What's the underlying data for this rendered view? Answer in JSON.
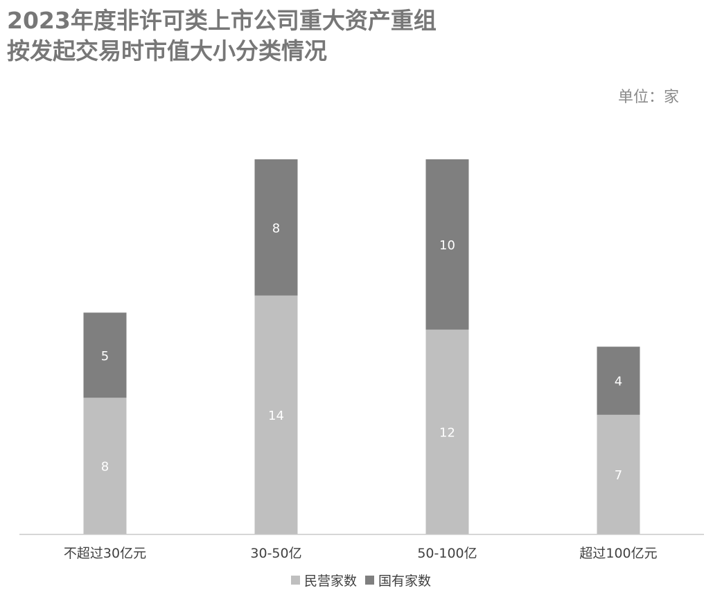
{
  "colors": {
    "private": "#bfbfbf",
    "state": "#7f7f7f",
    "axis": "#c8c8c8",
    "title": "#777777"
  },
  "chart_data": {
    "type": "bar",
    "stacked": true,
    "title_lines": [
      "2023年度非许可类上市公司重大资产重组",
      "按发起交易时市值大小分类情况"
    ],
    "unit_label": "单位：家",
    "categories": [
      "不超过30亿元",
      "30-50亿",
      "50-100亿",
      "超过100亿元"
    ],
    "series": [
      {
        "name": "民营家数",
        "values": [
          8,
          14,
          12,
          7
        ],
        "color": "#bfbfbf"
      },
      {
        "name": "国有家数",
        "values": [
          5,
          8,
          10,
          4
        ],
        "color": "#7f7f7f"
      }
    ],
    "ylim": [
      0,
      22
    ],
    "grid": false,
    "legend_position": "bottom"
  }
}
